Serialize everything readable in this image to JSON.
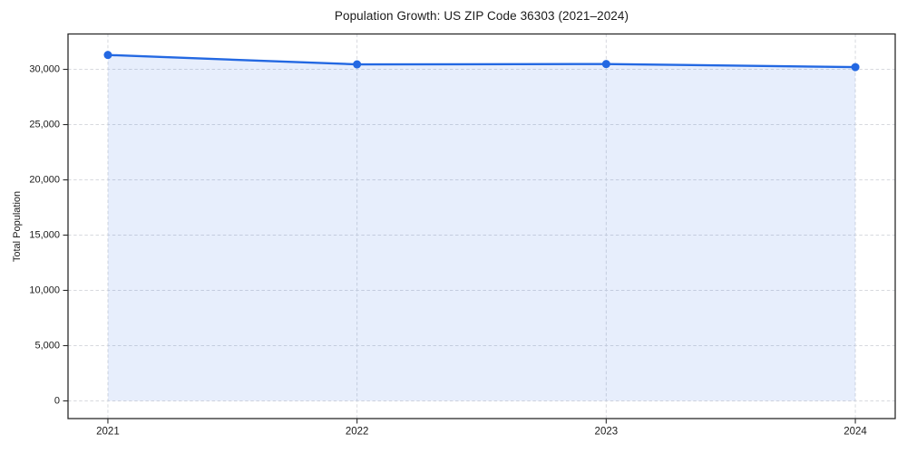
{
  "chart_data": {
    "type": "area",
    "title": "Population Growth: US ZIP Code 36303 (2021–2024)",
    "xlabel": "",
    "ylabel": "Total Population",
    "x": [
      2021,
      2022,
      2023,
      2024
    ],
    "x_tick_labels": [
      "2021",
      "2022",
      "2023",
      "2024"
    ],
    "series": [
      {
        "name": "Total Population",
        "values": [
          31300,
          30450,
          30480,
          30200
        ]
      }
    ],
    "yticks": [
      0,
      5000,
      10000,
      15000,
      20000,
      25000,
      30000
    ],
    "ytick_labels": [
      "0",
      "5,000",
      "10,000",
      "15,000",
      "20,000",
      "25,000",
      "30,000"
    ],
    "xlim": [
      2020.84,
      2024.16
    ],
    "ylim": [
      -1600,
      33200
    ],
    "grid": true,
    "grid_style": "dashed",
    "legend": "none",
    "marker": "circle",
    "colors": {
      "line": "#2368e2",
      "marker": "#2368e2",
      "fill": "rgba(35, 104, 226, 0.11)",
      "grid": "#d7d9de",
      "spine": "#2b2b2b",
      "text": "#1a1a1a",
      "background": "#ffffff"
    }
  }
}
